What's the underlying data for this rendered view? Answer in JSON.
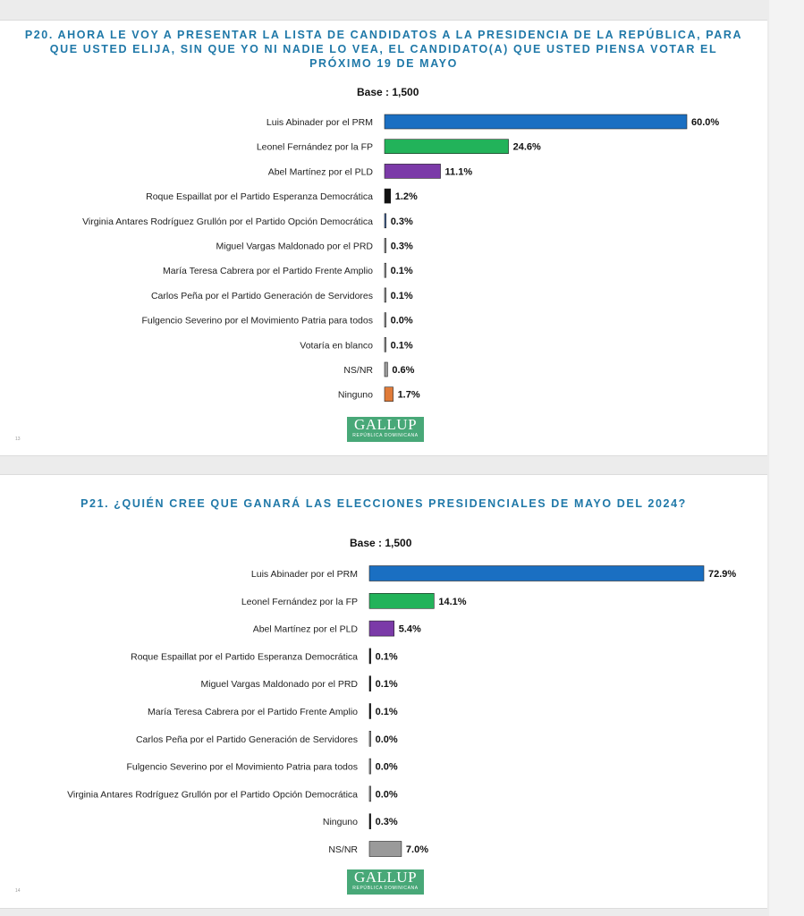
{
  "colors": {
    "title": "#1f78a8",
    "prm": "#1a6fc2",
    "fp": "#22b35a",
    "pld": "#7b3aa8",
    "black": "#111111",
    "thin": "#4a6fa8",
    "gray": "#9a9a9a",
    "orange": "#e07b39",
    "logo_bg": "#48a878"
  },
  "logo": {
    "brand": "GALLUP",
    "sub": "REPÚBLICA DOMINICANA"
  },
  "slides": [
    {
      "title": "P20. AHORA LE VOY A PRESENTAR LA LISTA DE CANDIDATOS A LA PRESIDENCIA DE LA REPÚBLICA, PARA QUE USTED ELIJA, SIN QUE YO NI NADIE LO VEA, EL CANDIDATO(A) QUE USTED PIENSA VOTAR EL PRÓXIMO 19 DE MAYO",
      "base": "Base : 1,500",
      "page_number": "13"
    },
    {
      "title": "P21.  ¿QUIÉN CREE QUE GANARÁ LAS ELECCIONES PRESIDENCIALES DE MAYO DEL 2024?",
      "base": "Base : 1,500",
      "page_number": "14"
    }
  ],
  "chart_data": [
    {
      "type": "bar",
      "orientation": "horizontal",
      "title": "P20. AHORA LE VOY A PRESENTAR LA LISTA DE CANDIDATOS A LA PRESIDENCIA DE LA REPÚBLICA, PARA QUE USTED ELIJA, SIN QUE YO NI NADIE LO VEA, EL CANDIDATO(A) QUE USTED PIENSA VOTAR EL PRÓXIMO 19 DE MAYO",
      "subtitle": "Base : 1,500",
      "categories": [
        "Luis Abinader por el PRM",
        "Leonel Fernández por la FP",
        "Abel Martínez por el PLD",
        "Roque Espaillat por el Partido Esperanza Democrática",
        "Virginia Antares Rodríguez Grullón por el Partido Opción Democrática",
        "Miguel Vargas Maldonado por el PRD",
        "María Teresa Cabrera por el Partido Frente Amplio",
        "Carlos Peña por el Partido Generación de Servidores",
        "Fulgencio Severino por el Movimiento Patria para todos",
        "Votaría en blanco",
        "NS/NR",
        "Ninguno"
      ],
      "values": [
        60.0,
        24.6,
        11.1,
        1.2,
        0.3,
        0.3,
        0.1,
        0.1,
        0.0,
        0.1,
        0.6,
        1.7
      ],
      "value_labels": [
        "60.0%",
        "24.6%",
        "11.1%",
        "1.2%",
        "0.3%",
        "0.3%",
        "0.1%",
        "0.1%",
        "0.0%",
        "0.1%",
        "0.6%",
        "1.7%"
      ],
      "bar_colors": [
        "#1a6fc2",
        "#22b35a",
        "#7b3aa8",
        "#111111",
        "#4a6fa8",
        "#9a9a9a",
        "#9a9a9a",
        "#9a9a9a",
        "#9a9a9a",
        "#9a9a9a",
        "#9a9a9a",
        "#e07b39"
      ],
      "xlim": [
        0,
        60
      ],
      "grid": false,
      "legend": "none"
    },
    {
      "type": "bar",
      "orientation": "horizontal",
      "title": "P21.  ¿QUIÉN CREE QUE GANARÁ LAS ELECCIONES PRESIDENCIALES DE MAYO DEL 2024?",
      "subtitle": "Base : 1,500",
      "categories": [
        "Luis Abinader por el PRM",
        "Leonel Fernández por la FP",
        "Abel Martínez por el PLD",
        "Roque Espaillat por el Partido Esperanza Democrática",
        "Miguel Vargas Maldonado por el PRD",
        "María Teresa Cabrera por el Partido Frente Amplio",
        "Carlos Peña por el Partido Generación de Servidores",
        "Fulgencio Severino por el Movimiento Patria para todos",
        "Virginia Antares Rodríguez Grullón por el Partido Opción Democrática",
        "Ninguno",
        "NS/NR"
      ],
      "values": [
        72.9,
        14.1,
        5.4,
        0.1,
        0.1,
        0.1,
        0.0,
        0.0,
        0.0,
        0.3,
        7.0
      ],
      "value_labels": [
        "72.9%",
        "14.1%",
        "5.4%",
        "0.1%",
        "0.1%",
        "0.1%",
        "0.0%",
        "0.0%",
        "0.0%",
        "0.3%",
        "7.0%"
      ],
      "bar_colors": [
        "#1a6fc2",
        "#22b35a",
        "#7b3aa8",
        "#111111",
        "#111111",
        "#111111",
        "#9a9a9a",
        "#9a9a9a",
        "#9a9a9a",
        "#111111",
        "#9a9a9a"
      ],
      "xlim": [
        0,
        72.9
      ],
      "grid": false,
      "legend": "none"
    }
  ]
}
